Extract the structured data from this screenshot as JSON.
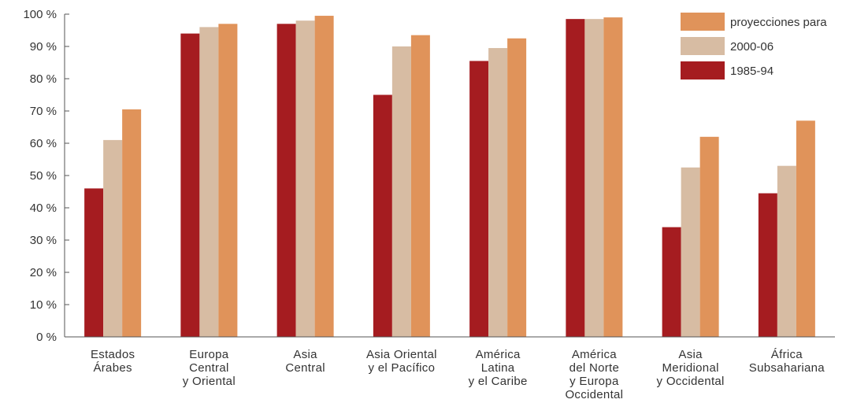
{
  "chart_data": {
    "type": "bar",
    "title": "",
    "xlabel": "",
    "ylabel": "",
    "ylim": [
      0,
      100
    ],
    "yticks": [
      "0 %",
      "10 %",
      "20 %",
      "30 %",
      "40 %",
      "50 %",
      "60 %",
      "70 %",
      "80 %",
      "90 %",
      "100 %"
    ],
    "categories": [
      [
        "Estados",
        "Árabes"
      ],
      [
        "Europa",
        "Central",
        "y Oriental"
      ],
      [
        "Asia",
        "Central"
      ],
      [
        "Asia Oriental",
        "y el Pacífico"
      ],
      [
        "América",
        "Latina",
        "y el Caribe"
      ],
      [
        "América",
        "del Norte",
        "y Europa",
        "Occidental"
      ],
      [
        "Asia",
        "Meridional",
        "y Occidental"
      ],
      [
        "África",
        "Subsahariana"
      ]
    ],
    "series": [
      {
        "name": "1985-94",
        "color": "#a51c20",
        "values": [
          46,
          94,
          97,
          75,
          85.5,
          98.5,
          34,
          44.5
        ]
      },
      {
        "name": "2000-06",
        "color": "#d7bca3",
        "values": [
          61,
          96,
          98,
          90,
          89.5,
          98.5,
          52.5,
          53
        ]
      },
      {
        "name": "proyecciones para",
        "color": "#e0935a",
        "values": [
          70.5,
          97,
          99.5,
          93.5,
          92.5,
          99,
          62,
          67
        ]
      }
    ],
    "legend": {
      "placement": "top-right",
      "order": [
        "proyecciones para",
        "2000-06",
        "1985-94"
      ]
    },
    "grid": false
  }
}
